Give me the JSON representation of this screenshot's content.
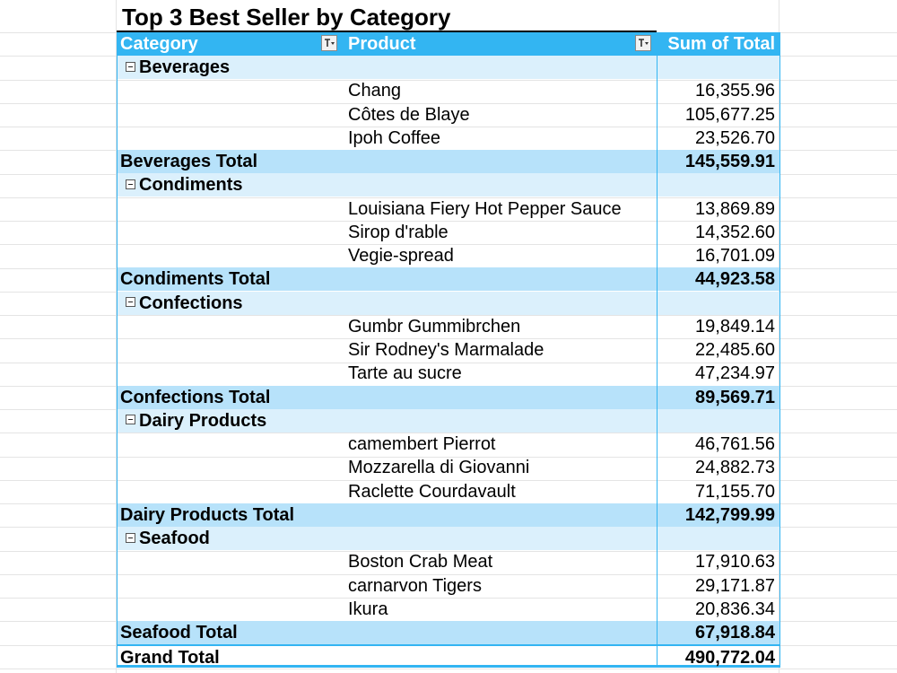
{
  "title": "Top 3 Best Seller by Category",
  "header": {
    "category_label": "Category",
    "product_label": "Product",
    "total_label": "Sum of Total"
  },
  "filter_icon_glyph": "⊤↓",
  "accent_color": "#33b5f2",
  "groups": [
    {
      "category": "Beverages",
      "items": [
        {
          "product": "Chang",
          "value": "16,355.96"
        },
        {
          "product": "Côtes de Blaye",
          "value": "105,677.25"
        },
        {
          "product": "Ipoh Coffee",
          "value": "23,526.70"
        }
      ],
      "total_label": "Beverages Total",
      "total_value": "145,559.91"
    },
    {
      "category": "Condiments",
      "items": [
        {
          "product": "Louisiana Fiery Hot Pepper Sauce",
          "value": "13,869.89"
        },
        {
          "product": "Sirop d'rable",
          "value": "14,352.60"
        },
        {
          "product": "Vegie-spread",
          "value": "16,701.09"
        }
      ],
      "total_label": "Condiments Total",
      "total_value": "44,923.58"
    },
    {
      "category": "Confections",
      "items": [
        {
          "product": "Gumbr Gummibrchen",
          "value": "19,849.14"
        },
        {
          "product": "Sir Rodney's Marmalade",
          "value": "22,485.60"
        },
        {
          "product": "Tarte au sucre",
          "value": "47,234.97"
        }
      ],
      "total_label": "Confections Total",
      "total_value": "89,569.71"
    },
    {
      "category": "Dairy Products",
      "items": [
        {
          "product": "camembert Pierrot",
          "value": "46,761.56"
        },
        {
          "product": "Mozzarella di Giovanni",
          "value": "24,882.73"
        },
        {
          "product": "Raclette Courdavault",
          "value": "71,155.70"
        }
      ],
      "total_label": "Dairy Products Total",
      "total_value": "142,799.99"
    },
    {
      "category": "Seafood",
      "items": [
        {
          "product": "Boston Crab Meat",
          "value": "17,910.63"
        },
        {
          "product": "carnarvon Tigers",
          "value": "29,171.87"
        },
        {
          "product": "Ikura",
          "value": "20,836.34"
        }
      ],
      "total_label": "Seafood Total",
      "total_value": "67,918.84"
    }
  ],
  "grand_total": {
    "label": "Grand Total",
    "value": "490,772.04"
  }
}
